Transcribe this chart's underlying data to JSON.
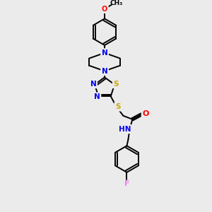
{
  "bg_color": "#ebebeb",
  "atom_colors": {
    "C": "#000000",
    "N": "#0000ee",
    "S": "#ccaa00",
    "O": "#ff0000",
    "F": "#ee82ee",
    "H": "#777777"
  },
  "bond_color": "#000000",
  "figsize": [
    3.0,
    3.0
  ],
  "dpi": 100
}
